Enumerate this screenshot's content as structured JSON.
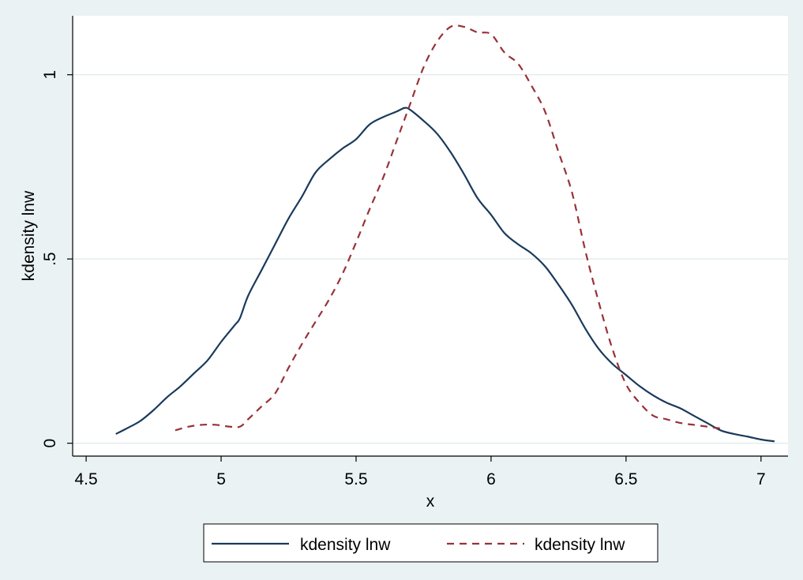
{
  "chart_data": {
    "type": "line",
    "xlabel": "x",
    "ylabel": "kdensity lnw",
    "xlim": [
      4.45,
      7.1
    ],
    "ylim": [
      -0.035,
      1.16
    ],
    "x_ticks": [
      4.5,
      5,
      5.5,
      6,
      6.5,
      7
    ],
    "x_tick_labels": [
      "4.5",
      "5",
      "5.5",
      "6",
      "6.5",
      "7"
    ],
    "y_ticks": [
      0,
      0.5,
      1
    ],
    "y_tick_labels": [
      "0",
      ".5",
      "1"
    ],
    "grid": true,
    "legend_position": "bottom",
    "colors": {
      "series1": "#1a3a5c",
      "series2": "#983238",
      "background": "#eaf2f3",
      "plot_background": "#ffffff",
      "grid": "#e1eaeb"
    },
    "series": [
      {
        "name": "kdensity lnw",
        "style": "solid",
        "points": [
          [
            4.61,
            0.025
          ],
          [
            4.65,
            0.04
          ],
          [
            4.7,
            0.06
          ],
          [
            4.75,
            0.09
          ],
          [
            4.8,
            0.125
          ],
          [
            4.85,
            0.155
          ],
          [
            4.9,
            0.19
          ],
          [
            4.95,
            0.225
          ],
          [
            5.0,
            0.275
          ],
          [
            5.05,
            0.32
          ],
          [
            5.07,
            0.34
          ],
          [
            5.1,
            0.4
          ],
          [
            5.15,
            0.47
          ],
          [
            5.2,
            0.54
          ],
          [
            5.25,
            0.61
          ],
          [
            5.3,
            0.67
          ],
          [
            5.35,
            0.735
          ],
          [
            5.4,
            0.77
          ],
          [
            5.45,
            0.8
          ],
          [
            5.5,
            0.825
          ],
          [
            5.55,
            0.865
          ],
          [
            5.6,
            0.885
          ],
          [
            5.65,
            0.9
          ],
          [
            5.68,
            0.91
          ],
          [
            5.7,
            0.905
          ],
          [
            5.75,
            0.875
          ],
          [
            5.8,
            0.84
          ],
          [
            5.85,
            0.79
          ],
          [
            5.9,
            0.73
          ],
          [
            5.95,
            0.665
          ],
          [
            6.0,
            0.62
          ],
          [
            6.05,
            0.57
          ],
          [
            6.1,
            0.54
          ],
          [
            6.15,
            0.515
          ],
          [
            6.2,
            0.48
          ],
          [
            6.25,
            0.43
          ],
          [
            6.3,
            0.375
          ],
          [
            6.35,
            0.31
          ],
          [
            6.4,
            0.255
          ],
          [
            6.45,
            0.215
          ],
          [
            6.5,
            0.185
          ],
          [
            6.55,
            0.155
          ],
          [
            6.6,
            0.13
          ],
          [
            6.65,
            0.11
          ],
          [
            6.7,
            0.095
          ],
          [
            6.75,
            0.075
          ],
          [
            6.8,
            0.055
          ],
          [
            6.85,
            0.035
          ],
          [
            6.9,
            0.025
          ],
          [
            6.95,
            0.018
          ],
          [
            7.0,
            0.01
          ],
          [
            7.05,
            0.005
          ]
        ]
      },
      {
        "name": "kdensity lnw",
        "style": "dashed",
        "points": [
          [
            4.83,
            0.035
          ],
          [
            4.88,
            0.045
          ],
          [
            4.93,
            0.05
          ],
          [
            4.98,
            0.05
          ],
          [
            5.03,
            0.045
          ],
          [
            5.07,
            0.045
          ],
          [
            5.1,
            0.065
          ],
          [
            5.15,
            0.1
          ],
          [
            5.2,
            0.135
          ],
          [
            5.25,
            0.205
          ],
          [
            5.3,
            0.27
          ],
          [
            5.35,
            0.33
          ],
          [
            5.4,
            0.39
          ],
          [
            5.45,
            0.46
          ],
          [
            5.5,
            0.545
          ],
          [
            5.55,
            0.635
          ],
          [
            5.6,
            0.72
          ],
          [
            5.65,
            0.82
          ],
          [
            5.7,
            0.92
          ],
          [
            5.75,
            1.02
          ],
          [
            5.8,
            1.09
          ],
          [
            5.85,
            1.13
          ],
          [
            5.9,
            1.13
          ],
          [
            5.95,
            1.115
          ],
          [
            6.0,
            1.11
          ],
          [
            6.05,
            1.06
          ],
          [
            6.1,
            1.03
          ],
          [
            6.15,
            0.97
          ],
          [
            6.2,
            0.9
          ],
          [
            6.25,
            0.79
          ],
          [
            6.3,
            0.68
          ],
          [
            6.35,
            0.52
          ],
          [
            6.4,
            0.38
          ],
          [
            6.45,
            0.255
          ],
          [
            6.5,
            0.16
          ],
          [
            6.55,
            0.11
          ],
          [
            6.6,
            0.075
          ],
          [
            6.65,
            0.065
          ],
          [
            6.7,
            0.055
          ],
          [
            6.75,
            0.05
          ],
          [
            6.8,
            0.045
          ],
          [
            6.85,
            0.04
          ]
        ]
      }
    ]
  }
}
